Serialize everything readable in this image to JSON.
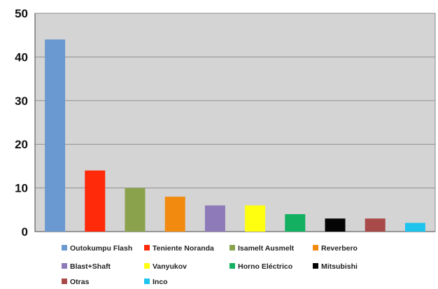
{
  "chart_data": {
    "type": "bar",
    "categories": [
      "Outokumpu Flash",
      "Teniente Noranda",
      "Isamelt Ausmelt",
      "Reverbero",
      "Blast+Shaft",
      "Vanyukov",
      "Horno Eléctrico",
      "Mitsubishi",
      "Otras",
      "Inco"
    ],
    "values": [
      44,
      14,
      10,
      8,
      6,
      6,
      4,
      3,
      3,
      2
    ],
    "colors": [
      "#6a98d0",
      "#ff2a0a",
      "#8aa24c",
      "#f28a10",
      "#8e7ab8",
      "#ffff10",
      "#12b060",
      "#050505",
      "#a84a48",
      "#1ec4ee"
    ],
    "ylim": [
      0,
      50
    ],
    "yticks": [
      0,
      10,
      20,
      30,
      40,
      50
    ],
    "grid": true,
    "legend_position": "bottom",
    "plot_background": "#d4d4d4",
    "title": "",
    "xlabel": "",
    "ylabel": ""
  }
}
